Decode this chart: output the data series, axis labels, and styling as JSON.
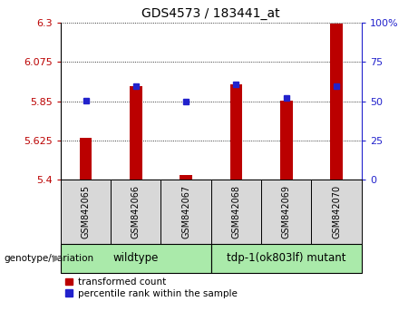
{
  "title": "GDS4573 / 183441_at",
  "samples": [
    "GSM842065",
    "GSM842066",
    "GSM842067",
    "GSM842068",
    "GSM842069",
    "GSM842070"
  ],
  "red_values": [
    5.638,
    5.935,
    5.425,
    5.945,
    5.855,
    6.295
  ],
  "blue_values": [
    5.855,
    5.935,
    5.848,
    5.945,
    5.868,
    5.935
  ],
  "ylim_left": [
    5.4,
    6.3
  ],
  "ylim_right": [
    0,
    100
  ],
  "yticks_left": [
    5.4,
    5.625,
    5.85,
    6.075,
    6.3
  ],
  "yticks_right": [
    0,
    25,
    50,
    75,
    100
  ],
  "ytick_labels_left": [
    "5.4",
    "5.625",
    "5.85",
    "6.075",
    "6.3"
  ],
  "ytick_labels_right": [
    "0",
    "25",
    "50",
    "75",
    "100%"
  ],
  "group1_label": "wildtype",
  "group2_label": "tdp-1(ok803lf) mutant",
  "group1_indices": [
    0,
    1,
    2
  ],
  "group2_indices": [
    3,
    4,
    5
  ],
  "genotype_label": "genotype/variation",
  "legend_red": "transformed count",
  "legend_blue": "percentile rank within the sample",
  "bar_color": "#bb0000",
  "dot_color": "#2222cc",
  "group_bg_color": "#aaeaaa",
  "sample_bg_color": "#d8d8d8",
  "bar_width": 0.25,
  "base_value": 5.4
}
